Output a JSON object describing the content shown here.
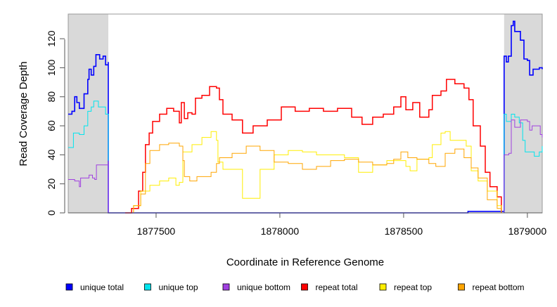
{
  "chart_data": {
    "type": "line",
    "title": "",
    "xlabel": "Coordinate in Reference Genome",
    "ylabel": "Read Coverage Depth",
    "xlim": [
      1877145,
      1879060
    ],
    "ylim": [
      0,
      137
    ],
    "x_ticks": [
      1877500,
      1878000,
      1878500,
      1879000
    ],
    "x_tick_labels": [
      "1877500",
      "1878000",
      "1878500",
      "1879000"
    ],
    "y_ticks": [
      0,
      20,
      40,
      60,
      80,
      100,
      120
    ],
    "y_tick_labels": [
      "0",
      "20",
      "40",
      "60",
      "80",
      "100",
      "120"
    ],
    "grid": false,
    "legend_position": "bottom",
    "shaded_regions": [
      [
        1877145,
        1877307
      ],
      [
        1878906,
        1879060
      ]
    ],
    "shade_color": "#d9d9d9",
    "series": [
      {
        "name": "unique total",
        "color": "#0000ff",
        "width": 1.6,
        "points": [
          [
            1877145,
            68
          ],
          [
            1877160,
            70
          ],
          [
            1877171,
            80
          ],
          [
            1877180,
            76
          ],
          [
            1877190,
            72
          ],
          [
            1877209,
            82
          ],
          [
            1877224,
            92
          ],
          [
            1877229,
            99
          ],
          [
            1877238,
            95
          ],
          [
            1877248,
            101
          ],
          [
            1877257,
            109
          ],
          [
            1877272,
            106
          ],
          [
            1877286,
            108
          ],
          [
            1877296,
            102
          ],
          [
            1877307,
            104
          ],
          [
            1877307,
            0
          ],
          [
            1878760,
            0
          ],
          [
            1878760,
            1
          ],
          [
            1878895,
            1
          ],
          [
            1878906,
            0
          ],
          [
            1878906,
            108
          ],
          [
            1878915,
            104
          ],
          [
            1878923,
            108
          ],
          [
            1878935,
            129
          ],
          [
            1878943,
            132
          ],
          [
            1878949,
            125
          ],
          [
            1878963,
            125
          ],
          [
            1878972,
            119
          ],
          [
            1878986,
            106
          ],
          [
            1879000,
            105
          ],
          [
            1879009,
            95
          ],
          [
            1879023,
            99
          ],
          [
            1879048,
            100
          ],
          [
            1879060,
            99
          ]
        ]
      },
      {
        "name": "unique top",
        "color": "#00e5ee",
        "width": 1,
        "points": [
          [
            1877145,
            45
          ],
          [
            1877166,
            55
          ],
          [
            1877190,
            54
          ],
          [
            1877209,
            60
          ],
          [
            1877224,
            70
          ],
          [
            1877238,
            73
          ],
          [
            1877248,
            77
          ],
          [
            1877267,
            73
          ],
          [
            1877286,
            73
          ],
          [
            1877296,
            68
          ],
          [
            1877307,
            68
          ],
          [
            1877307,
            0
          ],
          [
            1878906,
            0
          ],
          [
            1878906,
            68
          ],
          [
            1878915,
            63
          ],
          [
            1878935,
            68
          ],
          [
            1878949,
            66
          ],
          [
            1878967,
            62
          ],
          [
            1878981,
            50
          ],
          [
            1878991,
            42
          ],
          [
            1879009,
            42
          ],
          [
            1879028,
            39
          ],
          [
            1879048,
            42
          ],
          [
            1879060,
            46
          ]
        ]
      },
      {
        "name": "unique bottom",
        "color": "#a040e0",
        "width": 1,
        "points": [
          [
            1877145,
            23
          ],
          [
            1877171,
            22
          ],
          [
            1877190,
            18
          ],
          [
            1877195,
            24
          ],
          [
            1877224,
            24
          ],
          [
            1877229,
            26
          ],
          [
            1877243,
            24
          ],
          [
            1877252,
            23
          ],
          [
            1877259,
            33
          ],
          [
            1877286,
            33
          ],
          [
            1877307,
            36
          ],
          [
            1877307,
            0
          ],
          [
            1878906,
            0
          ],
          [
            1878906,
            40
          ],
          [
            1878925,
            41
          ],
          [
            1878935,
            64
          ],
          [
            1878949,
            59
          ],
          [
            1878963,
            59
          ],
          [
            1878972,
            64
          ],
          [
            1879000,
            63
          ],
          [
            1879009,
            57
          ],
          [
            1879019,
            60
          ],
          [
            1879038,
            60
          ],
          [
            1879052,
            54
          ],
          [
            1879060,
            52
          ]
        ]
      },
      {
        "name": "repeat total",
        "color": "#ff0000",
        "width": 1.5,
        "points": [
          [
            1877375,
            0
          ],
          [
            1877401,
            3
          ],
          [
            1877429,
            15
          ],
          [
            1877446,
            28
          ],
          [
            1877457,
            47
          ],
          [
            1877472,
            55
          ],
          [
            1877486,
            63
          ],
          [
            1877514,
            68
          ],
          [
            1877543,
            72
          ],
          [
            1877571,
            70
          ],
          [
            1877594,
            62
          ],
          [
            1877602,
            76
          ],
          [
            1877614,
            65
          ],
          [
            1877628,
            69
          ],
          [
            1877645,
            68
          ],
          [
            1877659,
            79
          ],
          [
            1877685,
            81
          ],
          [
            1877716,
            87
          ],
          [
            1877744,
            86
          ],
          [
            1877756,
            78
          ],
          [
            1877770,
            68
          ],
          [
            1877807,
            64
          ],
          [
            1877849,
            55
          ],
          [
            1877892,
            60
          ],
          [
            1877949,
            64
          ],
          [
            1878006,
            73
          ],
          [
            1878062,
            70
          ],
          [
            1878119,
            72
          ],
          [
            1878176,
            70
          ],
          [
            1878233,
            72
          ],
          [
            1878290,
            66
          ],
          [
            1878332,
            61
          ],
          [
            1878375,
            66
          ],
          [
            1878418,
            68
          ],
          [
            1878460,
            73
          ],
          [
            1878489,
            80
          ],
          [
            1878509,
            71
          ],
          [
            1878537,
            76
          ],
          [
            1878565,
            66
          ],
          [
            1878602,
            71
          ],
          [
            1878616,
            81
          ],
          [
            1878651,
            84
          ],
          [
            1878673,
            92
          ],
          [
            1878707,
            89
          ],
          [
            1878744,
            86
          ],
          [
            1878764,
            78
          ],
          [
            1878781,
            60
          ],
          [
            1878810,
            46
          ],
          [
            1878830,
            28
          ],
          [
            1878849,
            18
          ],
          [
            1878878,
            11
          ],
          [
            1878895,
            0
          ]
        ]
      },
      {
        "name": "repeat top",
        "color": "#ffee00",
        "width": 1,
        "points": [
          [
            1877375,
            0
          ],
          [
            1877409,
            5
          ],
          [
            1877438,
            15
          ],
          [
            1877475,
            19
          ],
          [
            1877514,
            22
          ],
          [
            1877551,
            24
          ],
          [
            1877580,
            19
          ],
          [
            1877594,
            21
          ],
          [
            1877608,
            42
          ],
          [
            1877645,
            47
          ],
          [
            1877685,
            52
          ],
          [
            1877722,
            56
          ],
          [
            1877744,
            50
          ],
          [
            1877750,
            35
          ],
          [
            1877770,
            30
          ],
          [
            1877807,
            30
          ],
          [
            1877849,
            10
          ],
          [
            1877878,
            10
          ],
          [
            1877920,
            30
          ],
          [
            1877977,
            40
          ],
          [
            1878034,
            43
          ],
          [
            1878091,
            42
          ],
          [
            1878148,
            40
          ],
          [
            1878205,
            40
          ],
          [
            1878261,
            38
          ],
          [
            1878318,
            28
          ],
          [
            1878375,
            33
          ],
          [
            1878432,
            36
          ],
          [
            1878460,
            36
          ],
          [
            1878509,
            32
          ],
          [
            1878526,
            29
          ],
          [
            1878554,
            37
          ],
          [
            1878602,
            38
          ],
          [
            1878616,
            47
          ],
          [
            1878651,
            55
          ],
          [
            1878668,
            56
          ],
          [
            1878688,
            50
          ],
          [
            1878724,
            50
          ],
          [
            1878753,
            46
          ],
          [
            1878773,
            29
          ],
          [
            1878801,
            22
          ],
          [
            1878838,
            15
          ],
          [
            1878878,
            5
          ],
          [
            1878895,
            0
          ]
        ]
      },
      {
        "name": "repeat bottom",
        "color": "#ffa500",
        "width": 1,
        "points": [
          [
            1877375,
            0
          ],
          [
            1877409,
            5
          ],
          [
            1877438,
            13
          ],
          [
            1877457,
            17
          ],
          [
            1877457,
            34
          ],
          [
            1877475,
            43
          ],
          [
            1877514,
            47
          ],
          [
            1877551,
            48
          ],
          [
            1877594,
            46
          ],
          [
            1877608,
            36
          ],
          [
            1877614,
            25
          ],
          [
            1877636,
            22
          ],
          [
            1877665,
            25
          ],
          [
            1877722,
            28
          ],
          [
            1877744,
            34
          ],
          [
            1877756,
            38
          ],
          [
            1877770,
            38
          ],
          [
            1877807,
            41
          ],
          [
            1877864,
            46
          ],
          [
            1877920,
            43
          ],
          [
            1877977,
            35
          ],
          [
            1878034,
            34
          ],
          [
            1878091,
            30
          ],
          [
            1878148,
            32
          ],
          [
            1878205,
            36
          ],
          [
            1878261,
            37
          ],
          [
            1878318,
            35
          ],
          [
            1878375,
            33
          ],
          [
            1878432,
            34
          ],
          [
            1878460,
            37
          ],
          [
            1878489,
            42
          ],
          [
            1878517,
            38
          ],
          [
            1878554,
            37
          ],
          [
            1878602,
            34
          ],
          [
            1878630,
            32
          ],
          [
            1878668,
            41
          ],
          [
            1878707,
            44
          ],
          [
            1878744,
            38
          ],
          [
            1878773,
            31
          ],
          [
            1878801,
            24
          ],
          [
            1878838,
            9
          ],
          [
            1878878,
            3
          ],
          [
            1878895,
            0
          ]
        ]
      }
    ]
  }
}
